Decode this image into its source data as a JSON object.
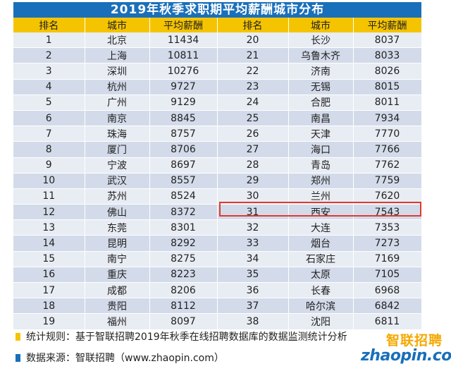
{
  "title": "2019年秋季求职期平均薪酬城市分布",
  "headers": [
    "排名",
    "城市",
    "平均薪酬",
    "排名",
    "城市",
    "平均薪酬"
  ],
  "left_rows": [
    [
      "1",
      "北京",
      "11434"
    ],
    [
      "2",
      "上海",
      "10811"
    ],
    [
      "3",
      "深圳",
      "10276"
    ],
    [
      "4",
      "杭州",
      "9727"
    ],
    [
      "5",
      "广州",
      "9129"
    ],
    [
      "6",
      "南京",
      "8845"
    ],
    [
      "7",
      "珠海",
      "8757"
    ],
    [
      "8",
      "厦门",
      "8706"
    ],
    [
      "9",
      "宁波",
      "8697"
    ],
    [
      "10",
      "武汉",
      "8557"
    ],
    [
      "11",
      "苏州",
      "8524"
    ],
    [
      "12",
      "佛山",
      "8372"
    ],
    [
      "13",
      "东莞",
      "8301"
    ],
    [
      "14",
      "昆明",
      "8292"
    ],
    [
      "15",
      "南宁",
      "8275"
    ],
    [
      "16",
      "重庆",
      "8223"
    ],
    [
      "17",
      "成都",
      "8206"
    ],
    [
      "18",
      "贵阳",
      "8112"
    ],
    [
      "19",
      "福州",
      "8097"
    ]
  ],
  "right_rows": [
    [
      "20",
      "长沙",
      "8037"
    ],
    [
      "21",
      "乌鲁木齐",
      "8033"
    ],
    [
      "22",
      "济南",
      "8026"
    ],
    [
      "23",
      "无锡",
      "8015"
    ],
    [
      "24",
      "合肥",
      "8011"
    ],
    [
      "25",
      "南昌",
      "7934"
    ],
    [
      "26",
      "天津",
      "7770"
    ],
    [
      "27",
      "海口",
      "7766"
    ],
    [
      "28",
      "青岛",
      "7762"
    ],
    [
      "29",
      "郑州",
      "7759"
    ],
    [
      "30",
      "兰州",
      "7620"
    ],
    [
      "31",
      "西安",
      "7543"
    ],
    [
      "32",
      "大连",
      "7353"
    ],
    [
      "33",
      "烟台",
      "7273"
    ],
    [
      "34",
      "石家庄",
      "7169"
    ],
    [
      "35",
      "太原",
      "7105"
    ],
    [
      "36",
      "长春",
      "6968"
    ],
    [
      "37",
      "哈尔滨",
      "6842"
    ],
    [
      "38",
      "沈阳",
      "6811"
    ]
  ],
  "highlighted_rank": "31",
  "footnotes": {
    "rule": "统计规则：基于智联招聘2019年秋季在线招聘数据库的数据监测统计分析",
    "source": "数据来源：智联招聘（www.zhaopin.com）"
  },
  "logo": {
    "cn": "智联招聘",
    "en": "zhaopin.com"
  },
  "colors": {
    "title_bg": "#1a6fba",
    "header_bg": "#f5c400",
    "row_light": "#e8ecf3",
    "row_dark": "#d3dbea",
    "highlight": "#e03a2d",
    "bullet_rule": "#f5c400",
    "bullet_source": "#1a6fba"
  }
}
